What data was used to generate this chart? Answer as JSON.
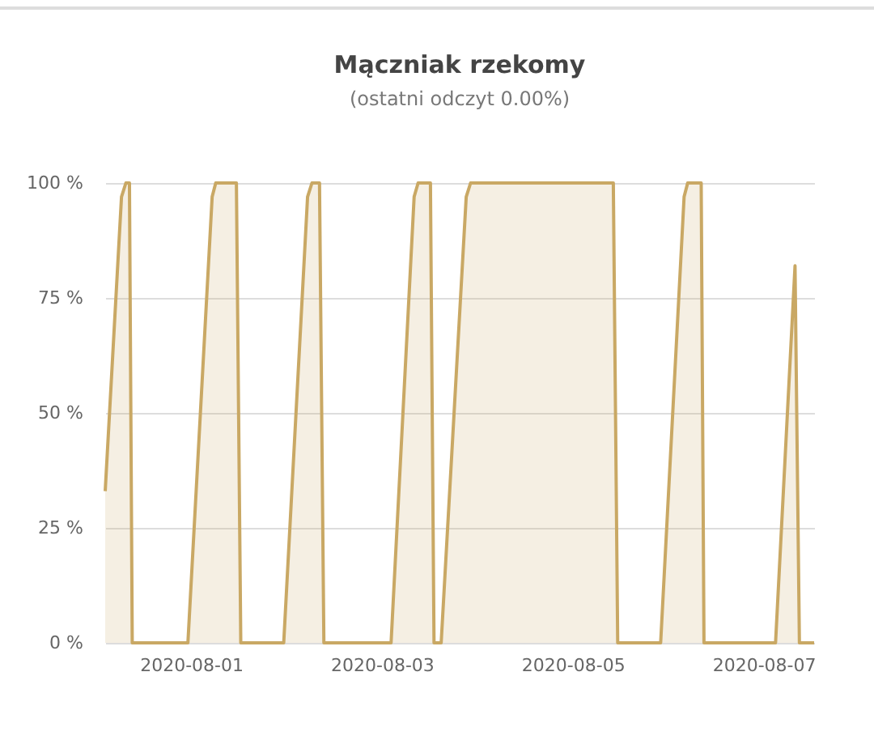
{
  "chart_data": {
    "type": "area",
    "title": "Mączniak rzekomy",
    "subtitle": "(ostatni odczyt 0.00%)",
    "x": [
      "2020-07-31T02:24",
      "2020-07-31T06:30",
      "2020-07-31T07:36",
      "2020-07-31T08:30",
      "2020-07-31T09:12",
      "2020-07-31T23:12",
      "2020-08-01T05:18",
      "2020-08-01T06:12",
      "2020-08-01T11:24",
      "2020-08-01T12:30",
      "2020-08-01T23:18",
      "2020-08-02T05:18",
      "2020-08-02T06:24",
      "2020-08-02T08:18",
      "2020-08-02T09:24",
      "2020-08-03T02:18",
      "2020-08-03T08:06",
      "2020-08-03T09:06",
      "2020-08-03T12:12",
      "2020-08-03T13:06",
      "2020-08-03T14:54",
      "2020-08-03T21:12",
      "2020-08-03T22:18",
      "2020-08-05T10:12",
      "2020-08-05T11:18",
      "2020-08-05T22:06",
      "2020-08-06T04:00",
      "2020-08-06T04:54",
      "2020-08-06T08:18",
      "2020-08-06T09:00",
      "2020-08-07T03:00",
      "2020-08-07T07:54",
      "2020-08-07T09:00",
      "2020-08-07T12:42"
    ],
    "series": [
      {
        "color": "#c9a864",
        "values": [
          33,
          97,
          100,
          100,
          0,
          0,
          97,
          100,
          100,
          0,
          0,
          97,
          100,
          100,
          0,
          0,
          97,
          100,
          100,
          0,
          0,
          97,
          100,
          100,
          0,
          0,
          97,
          100,
          100,
          0,
          0,
          82,
          0,
          0
        ]
      }
    ],
    "xlim": [
      "2020-07-31T02:24",
      "2020-08-07T12:42"
    ],
    "xticks": [
      "2020-08-01",
      "2020-08-03",
      "2020-08-05",
      "2020-08-07"
    ],
    "ylim": [
      0,
      100
    ],
    "yticks": [
      {
        "value": 0,
        "label": "0 %"
      },
      {
        "value": 25,
        "label": "25 %"
      },
      {
        "value": 50,
        "label": "50 %"
      },
      {
        "value": 75,
        "label": "75 %"
      },
      {
        "value": 100,
        "label": "100 %"
      }
    ],
    "grid": "y"
  }
}
